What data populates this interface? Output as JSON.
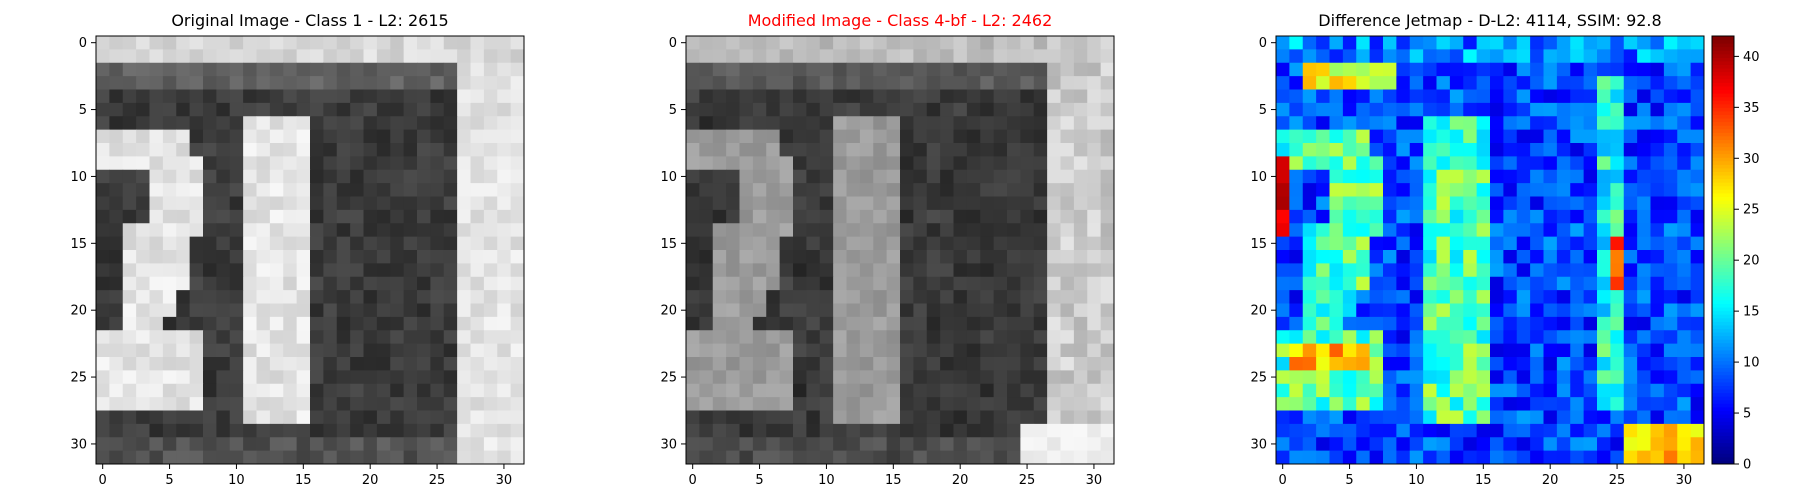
{
  "panels": [
    {
      "title": "Original Image - Class 1 - L2: 2615",
      "title_color": "#000000",
      "type": "heatmap",
      "colormap": "gray",
      "x_ticks": [
        "0",
        "5",
        "10",
        "15",
        "20",
        "25",
        "30"
      ],
      "y_ticks": [
        "0",
        "5",
        "10",
        "15",
        "20",
        "25",
        "30"
      ]
    },
    {
      "title": "Modified Image - Class 4-bf - L2: 2462",
      "title_color": "#ff0000",
      "type": "heatmap",
      "colormap": "gray",
      "x_ticks": [
        "0",
        "5",
        "10",
        "15",
        "20",
        "25",
        "30"
      ],
      "y_ticks": [
        "0",
        "5",
        "10",
        "15",
        "20",
        "25",
        "30"
      ]
    },
    {
      "title": "Difference Jetmap - D-L2: 4114, SSIM: 92.8",
      "title_color": "#000000",
      "type": "heatmap",
      "colormap": "jet",
      "x_ticks": [
        "0",
        "5",
        "10",
        "15",
        "20",
        "25",
        "30"
      ],
      "y_ticks": [
        "0",
        "5",
        "10",
        "15",
        "20",
        "25",
        "30"
      ],
      "colorbar": {
        "range": [
          0,
          42
        ],
        "ticks": [
          "0",
          "5",
          "10",
          "15",
          "20",
          "25",
          "30",
          "35",
          "40"
        ]
      }
    }
  ],
  "chart_data": [
    {
      "type": "heatmap",
      "title": "Original Image - Class 1 - L2: 2615",
      "grid_size": [
        32,
        32
      ],
      "xlim": [
        -0.5,
        31.5
      ],
      "ylim": [
        31.5,
        -0.5
      ],
      "description_values": "grayscale digit image showing '21' on a dark plate"
    },
    {
      "type": "heatmap",
      "title": "Modified Image - Class 4-bf - L2: 2462",
      "grid_size": [
        32,
        32
      ],
      "xlim": [
        -0.5,
        31.5
      ],
      "ylim": [
        31.5,
        -0.5
      ]
    },
    {
      "type": "heatmap",
      "title": "Difference Jetmap - D-L2: 4114, SSIM: 92.8",
      "grid_size": [
        32,
        32
      ],
      "xlim": [
        -0.5,
        31.5
      ],
      "ylim": [
        31.5,
        -0.5
      ],
      "color_range": [
        0,
        42
      ]
    }
  ]
}
